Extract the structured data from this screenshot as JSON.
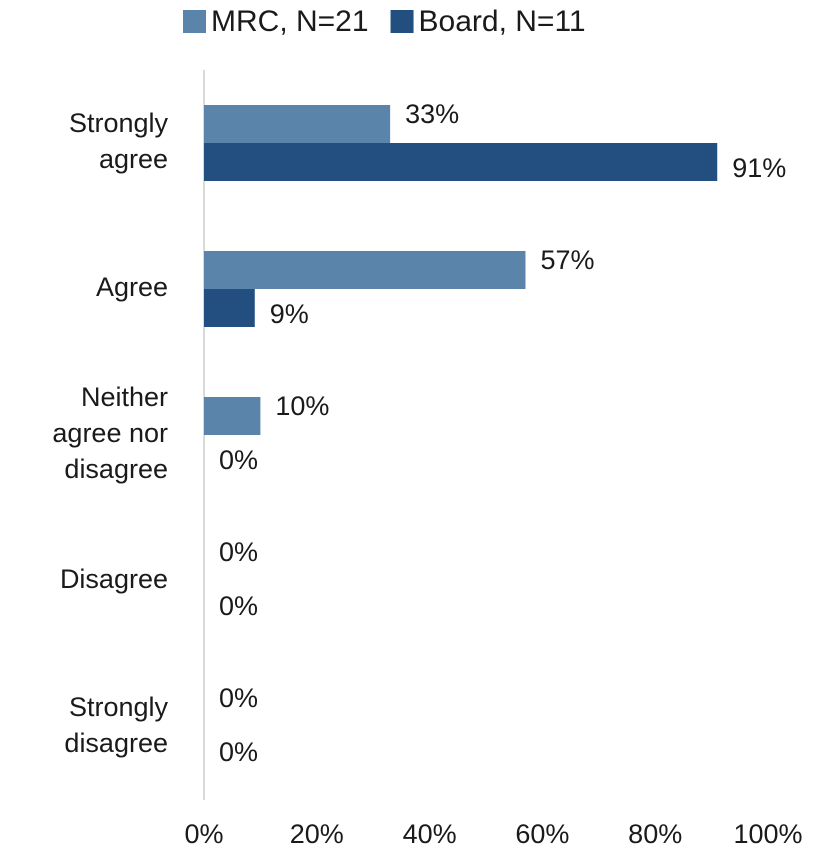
{
  "chart_data": {
    "type": "hbar",
    "categories": [
      "Strongly agree",
      "Agree",
      "Neither agree nor disagree",
      "Disagree",
      "Strongly disagree"
    ],
    "series": [
      {
        "name": "MRC, N=21",
        "color": "#5b84ab",
        "values": [
          33,
          57,
          10,
          0,
          0
        ],
        "value_labels": [
          "33%",
          "57%",
          "10%",
          "0%",
          "0%"
        ]
      },
      {
        "name": "Board, N=11",
        "color": "#224e80",
        "values": [
          91,
          9,
          0,
          0,
          0
        ],
        "value_labels": [
          "91%",
          "9%",
          "0%",
          "0%",
          "0%"
        ]
      }
    ],
    "xlim": [
      0,
      100
    ],
    "xticks": [
      {
        "value": 0,
        "label": "0%"
      },
      {
        "value": 20,
        "label": "20%"
      },
      {
        "value": 40,
        "label": "40%"
      },
      {
        "value": 60,
        "label": "60%"
      },
      {
        "value": 80,
        "label": "80%"
      },
      {
        "value": 100,
        "label": "100%"
      }
    ],
    "legend": "top"
  }
}
